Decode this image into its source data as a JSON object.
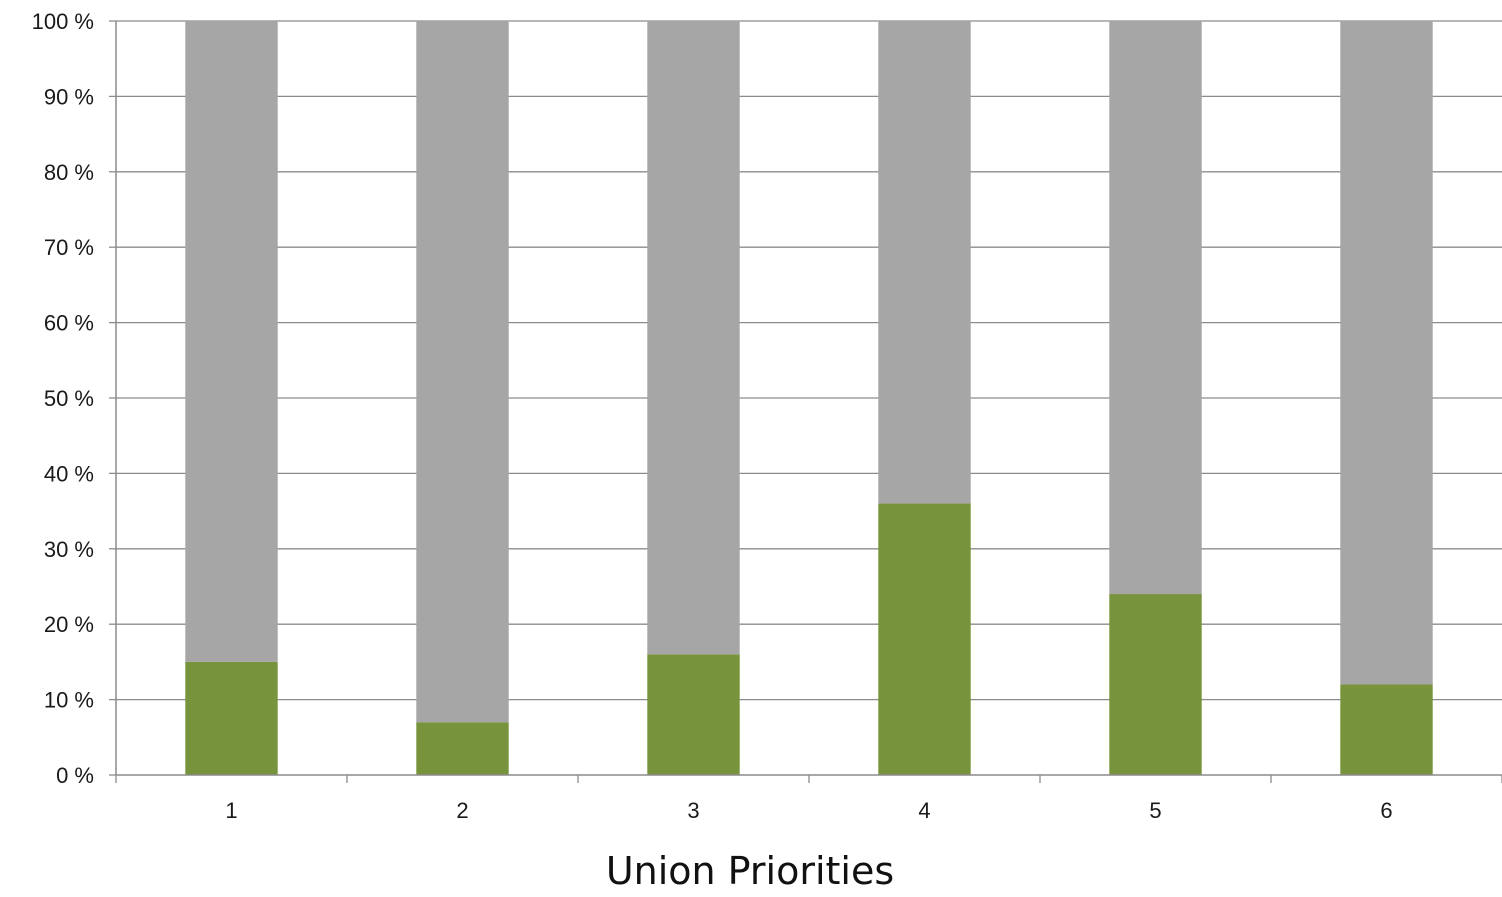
{
  "chart_data": {
    "type": "bar",
    "stacked": true,
    "percent_stacked": true,
    "categories": [
      "1",
      "2",
      "3",
      "4",
      "5",
      "6"
    ],
    "series": [
      {
        "values": [
          15,
          7,
          16,
          36,
          24,
          12
        ],
        "color": "#77933c"
      },
      {
        "values": [
          85,
          93,
          84,
          64,
          76,
          88
        ],
        "color": "#a6a6a6"
      }
    ],
    "xlabel": "Union Priorities",
    "ylabel": "",
    "ylim": [
      0,
      100
    ],
    "yticks": [
      "0 %",
      "10 %",
      "20 %",
      "30 %",
      "40 %",
      "50 %",
      "60 %",
      "70 %",
      "80 %",
      "90 %",
      "100 %"
    ],
    "grid": true,
    "legend": "none"
  }
}
